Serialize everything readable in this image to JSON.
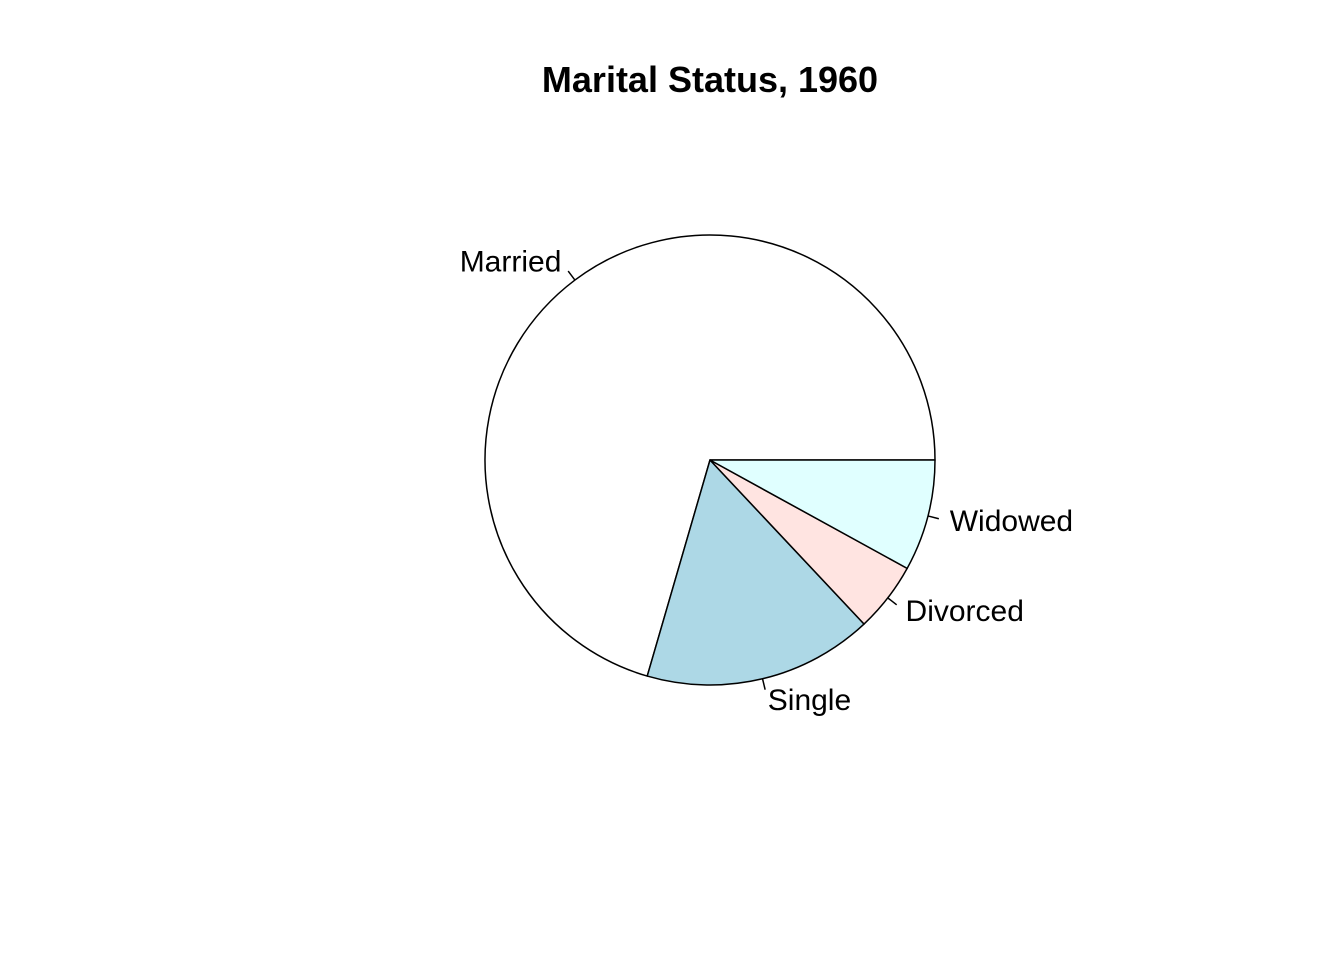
{
  "chart_data": {
    "type": "pie",
    "title": "Marital Status, 1960",
    "categories": [
      "Married",
      "Single",
      "Divorced",
      "Widowed"
    ],
    "values": [
      70.5,
      16.5,
      5.0,
      8.0
    ],
    "colors": [
      "#FFFFFF",
      "#ADD8E6",
      "#FFE4E1",
      "#E0FFFF"
    ],
    "direction": "counterclockwise",
    "start": "3 o'clock"
  }
}
